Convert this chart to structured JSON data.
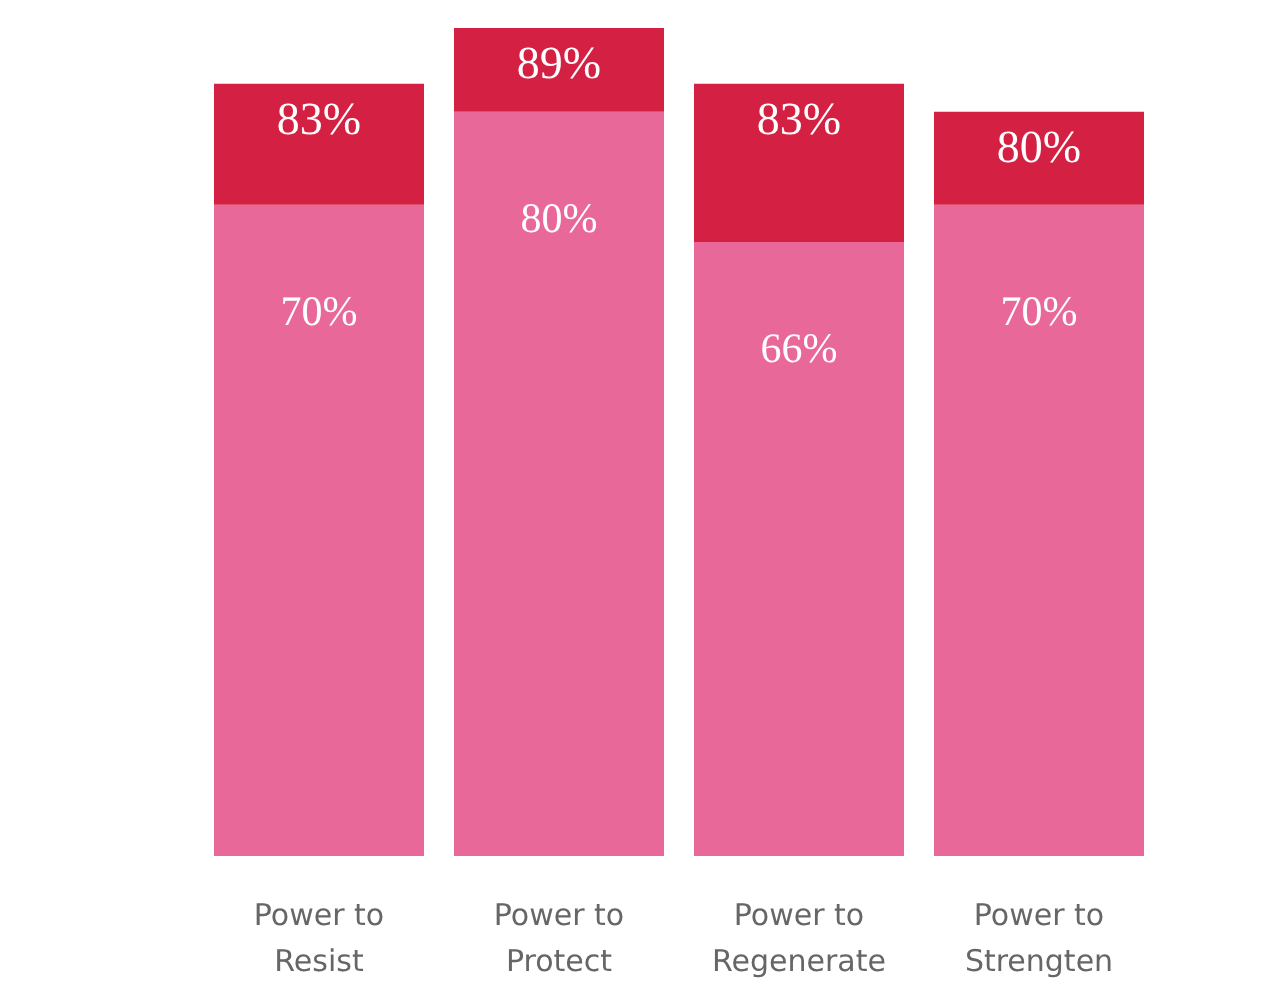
{
  "chart_data": {
    "type": "bar",
    "stacked": true,
    "categories": [
      "Power to Resist",
      "Power to Protect",
      "Power to Regenerate",
      "Power to Strengten"
    ],
    "series": [
      {
        "color": "#e9689a",
        "values": [
          70,
          80,
          66,
          70
        ],
        "value_labels": [
          "70%",
          "80%",
          "66%",
          "70%"
        ]
      },
      {
        "color": "#d42042",
        "values": [
          13,
          9,
          17,
          10
        ]
      }
    ],
    "totals": [
      "83%",
      "89%",
      "83%",
      "80%"
    ]
  }
}
